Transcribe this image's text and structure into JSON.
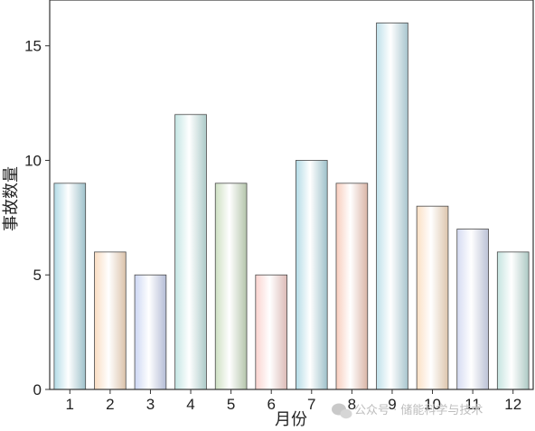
{
  "chart_data": {
    "type": "bar",
    "categories": [
      "1",
      "2",
      "3",
      "4",
      "5",
      "6",
      "7",
      "8",
      "9",
      "10",
      "11",
      "12"
    ],
    "values": [
      9,
      6,
      5,
      12,
      9,
      5,
      10,
      9,
      16,
      8,
      7,
      6
    ],
    "xlabel": "月份",
    "ylabel": "事故数量",
    "ylim": [
      0,
      17
    ],
    "yticks": [
      0,
      5,
      10,
      15
    ],
    "grid": false,
    "bar_colors": [
      "#b3dbe6",
      "#f9dcc1",
      "#ccd6f3",
      "#c3e5e3",
      "#cde0c2",
      "#fad3cf",
      "#b3dbe6",
      "#f8cdbd",
      "#bfe0ea",
      "#fbe0c4",
      "#d5dbf2",
      "#c5e4df"
    ]
  },
  "watermark": {
    "text": "公众号 · 储能科学与技术"
  }
}
